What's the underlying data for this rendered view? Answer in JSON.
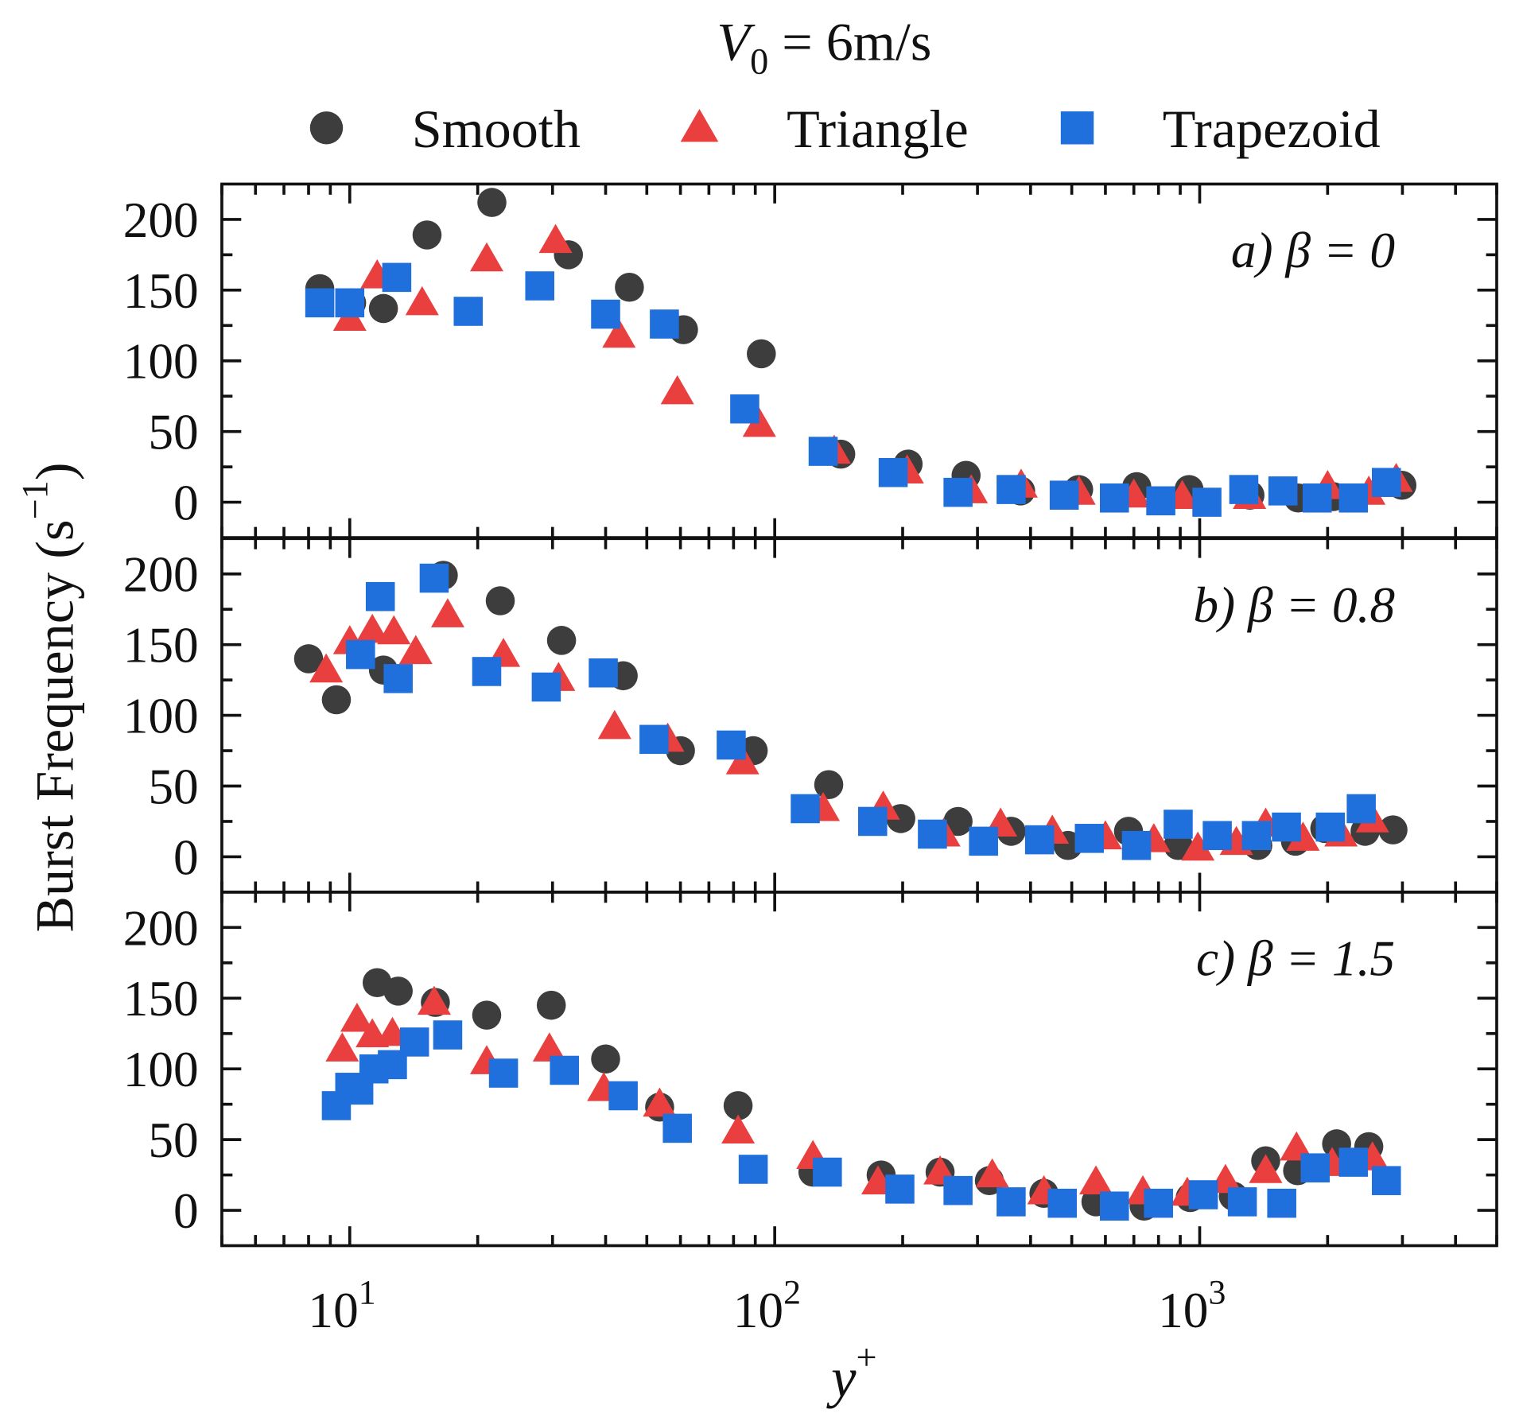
{
  "chart_data": {
    "type": "scatter",
    "title": {
      "var": "V",
      "sub": "0",
      "rest": " = 6m/s"
    },
    "xlabel": {
      "var": "y",
      "sup": "+"
    },
    "ylabel": {
      "text": "Burst Frequency (s",
      "sup": "−1",
      "close": ")"
    },
    "xscale": "log",
    "xlim": [
      5,
      5000
    ],
    "ylim": [
      -25,
      225
    ],
    "xticks": [
      10,
      100,
      1000
    ],
    "xtick_labels": [
      {
        "base": "10",
        "exp": "1"
      },
      {
        "base": "10",
        "exp": "2"
      },
      {
        "base": "10",
        "exp": "3"
      }
    ],
    "yticks": [
      0,
      50,
      100,
      150,
      200
    ],
    "ytick_labels": [
      "0",
      "50",
      "100",
      "150",
      "200"
    ],
    "legend": {
      "placement": "top-center",
      "entries": [
        {
          "name": "Smooth",
          "marker": "circle",
          "color": "#3d3d3d"
        },
        {
          "name": "Triangle",
          "marker": "triangle",
          "color": "#ea3f3f"
        },
        {
          "name": "Trapezoid",
          "marker": "square",
          "color": "#1f6fdc"
        }
      ]
    },
    "panels": [
      {
        "label": "a) β = 0",
        "series": [
          {
            "name": "Smooth",
            "x": [
              8.5,
              10.1,
              12.0,
              15.2,
              21.6,
              32.7,
              45.5,
              61,
              93,
              143,
              206,
              282,
              379,
              519,
              711,
              944,
              1313,
              1706,
              2061,
              2991
            ],
            "y": [
              151,
              141,
              137,
              189,
              212,
              175,
              152,
              122,
              105,
              34,
              27,
              19,
              8,
              9,
              11,
              9,
              5,
              3,
              4,
              12
            ]
          },
          {
            "name": "Triangle",
            "x": [
              10,
              11.6,
              14.8,
              21,
              30.5,
              43,
              59,
              92,
              138,
              205,
              290,
              380,
              520,
              700,
              910,
              1310,
              2000,
              2500,
              2900
            ],
            "y": [
              130,
              160,
              141,
              172,
              185,
              118,
              78,
              55,
              36,
              22,
              8,
              12,
              7,
              5,
              4,
              4,
              11,
              7,
              16
            ]
          },
          {
            "name": "Trapezoid",
            "x": [
              8.5,
              10,
              12.9,
              19,
              28,
              40,
              55,
              85,
              130,
              190,
              270,
              360,
              480,
              630,
              810,
              1040,
              1270,
              1570,
              1890,
              2300,
              2750
            ],
            "y": [
              141,
              141,
              159,
              135,
              153,
              133,
              126,
              66,
              36,
              21,
              7,
              9,
              5,
              3,
              1,
              0,
              9,
              8,
              3,
              3,
              14
            ]
          }
        ]
      },
      {
        "label": "b) β = 0.8",
        "series": [
          {
            "name": "Smooth",
            "x": [
              8.0,
              9.3,
              12,
              16.6,
              22.6,
              31.5,
              44,
              60,
              89,
              134,
              198,
              270,
              360,
              490,
              680,
              890,
              1370,
              1680,
              1970,
              2450,
              2850
            ],
            "y": [
              140,
              111,
              132,
              199,
              181,
              153,
              128,
              75,
              75,
              51,
              27,
              25,
              18,
              8,
              18,
              8,
              8,
              11,
              20,
              18,
              19
            ]
          },
          {
            "name": "Triangle",
            "x": [
              8.8,
              10,
              11.3,
              12.7,
              14.3,
              17,
              23,
              31,
              42,
              56,
              84,
              130,
              180,
              250,
              340,
              450,
              600,
              780,
              990,
              1220,
              1430,
              1750,
              2150,
              2550
            ],
            "y": [
              132,
              152,
              160,
              159,
              145,
              171,
              143,
              126,
              92,
              83,
              67,
              34,
              35,
              16,
              23,
              18,
              14,
              12,
              6,
              10,
              23,
              13,
              16,
              26
            ]
          },
          {
            "name": "Trapezoid",
            "x": [
              10.6,
              11.8,
              13,
              15.8,
              21,
              29,
              39.5,
              52,
              79,
              118,
              170,
              235,
              310,
              420,
              550,
              710,
              890,
              1100,
              1360,
              1600,
              2030,
              2400
            ],
            "y": [
              143,
              184,
              126,
              197,
              131,
              120,
              130,
              83,
              79,
              34,
              25,
              16,
              11,
              12,
              13,
              8,
              23,
              15,
              15,
              21,
              21,
              34
            ]
          }
        ]
      },
      {
        "label": "c) β = 1.5",
        "series": [
          {
            "name": "Smooth",
            "x": [
              11.6,
              13,
              15.9,
              21,
              29.8,
              40,
              53.6,
              82,
              123,
              178,
              245,
              320,
              430,
              570,
              740,
              950,
              1200,
              1430,
              1700,
              2100,
              2500
            ],
            "y": [
              161,
              155,
              147,
              138,
              145,
              107,
              73,
              74,
              27,
              25,
              27,
              21,
              12,
              6,
              3,
              9,
              10,
              35,
              28,
              47,
              45
            ]
          },
          {
            "name": "Triangle",
            "x": [
              9.6,
              10.4,
              11.3,
              12.6,
              15.8,
              21,
              29.5,
              39.6,
              53.6,
              82,
              123,
              175,
              245,
              325,
              430,
              570,
              735,
              935,
              1150,
              1430,
              1690,
              2050,
              2550
            ],
            "y": [
              114,
              135,
              124,
              125,
              147,
              105,
              114,
              86,
              75,
              56,
              38,
              20,
              27,
              25,
              13,
              20,
              13,
              12,
              21,
              28,
              44,
              33,
              37
            ]
          },
          {
            "name": "Trapezoid",
            "x": [
              9.3,
              10,
              10.5,
              11.4,
              12.6,
              14.2,
              17,
              23,
              32,
              44,
              59,
              89,
              133,
              197,
              270,
              360,
              475,
              630,
              800,
              1020,
              1260,
              1560,
              1870,
              2300,
              2750
            ],
            "y": [
              74,
              87,
              85,
              100,
              103,
              119,
              124,
              97,
              99,
              81,
              58,
              29,
              27,
              15,
              14,
              6,
              5,
              3,
              5,
              11,
              6,
              5,
              30,
              34,
              21
            ]
          }
        ]
      }
    ]
  }
}
